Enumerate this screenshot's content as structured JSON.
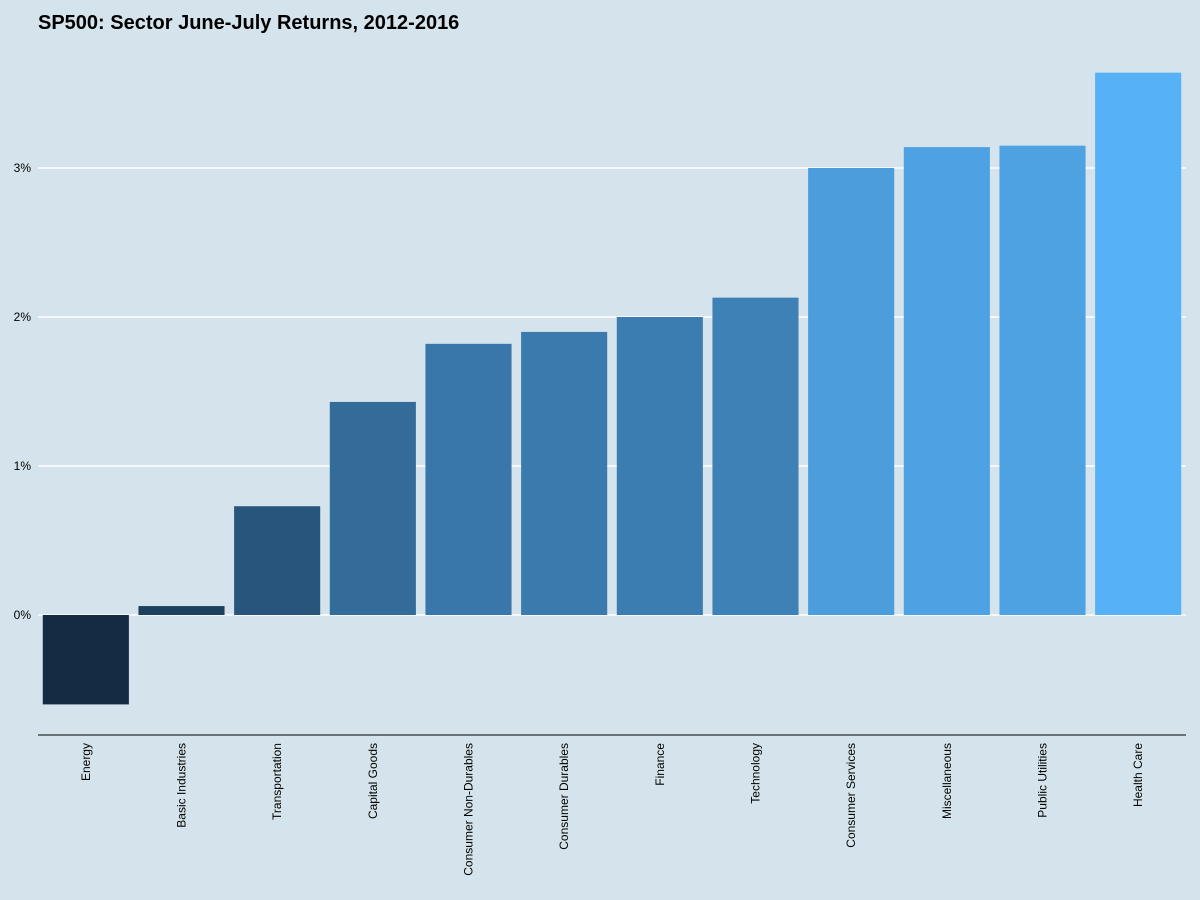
{
  "chart_data": {
    "type": "bar",
    "title": "SP500: Sector June-July Returns, 2012-2016",
    "xlabel": "",
    "ylabel": "",
    "categories": [
      "Energy",
      "Basic Industries",
      "Transportation",
      "Capital Goods",
      "Consumer Non-Durables",
      "Consumer Durables",
      "Finance",
      "Technology",
      "Consumer Services",
      "Miscellaneous",
      "Public Utilities",
      "Health Care"
    ],
    "values": [
      -0.6,
      0.06,
      0.73,
      1.43,
      1.82,
      1.9,
      2.0,
      2.13,
      3.0,
      3.14,
      3.15,
      3.64
    ],
    "ylim": [
      -0.8,
      3.8
    ],
    "yticks": [
      0,
      1,
      2,
      3
    ],
    "ytick_labels": [
      "0%",
      "1%",
      "2%",
      "3%"
    ],
    "grid": "horizontal-major",
    "legend": "none",
    "colors": {
      "background": "#d5e4ec",
      "gridline": "#ffffff",
      "axis_line": "#000000",
      "bar_low": "#132b43",
      "bar_high": "#56b1f7"
    }
  }
}
